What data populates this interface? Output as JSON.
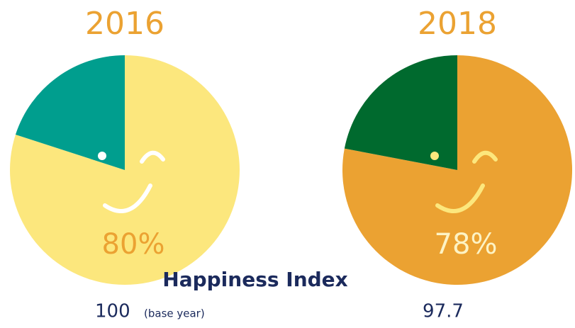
{
  "chart_data": [
    {
      "type": "pie",
      "title": "2016",
      "categories": [
        null,
        null
      ],
      "values": [
        80,
        20
      ],
      "value_labels": [
        "80%",
        null
      ],
      "colors": [
        "#fce77d",
        "#009e8e"
      ],
      "label_color": "#eba232"
    },
    {
      "type": "pie",
      "title": "2018",
      "categories": [
        null,
        null
      ],
      "values": [
        78,
        22
      ],
      "value_labels": [
        "78%",
        null
      ],
      "colors": [
        "#eba232",
        "#006a2e"
      ],
      "label_color": "#fdf3c4"
    }
  ],
  "footer": {
    "title": "Happiness Index",
    "values": [
      100,
      97.7
    ],
    "note": "(base year)"
  }
}
